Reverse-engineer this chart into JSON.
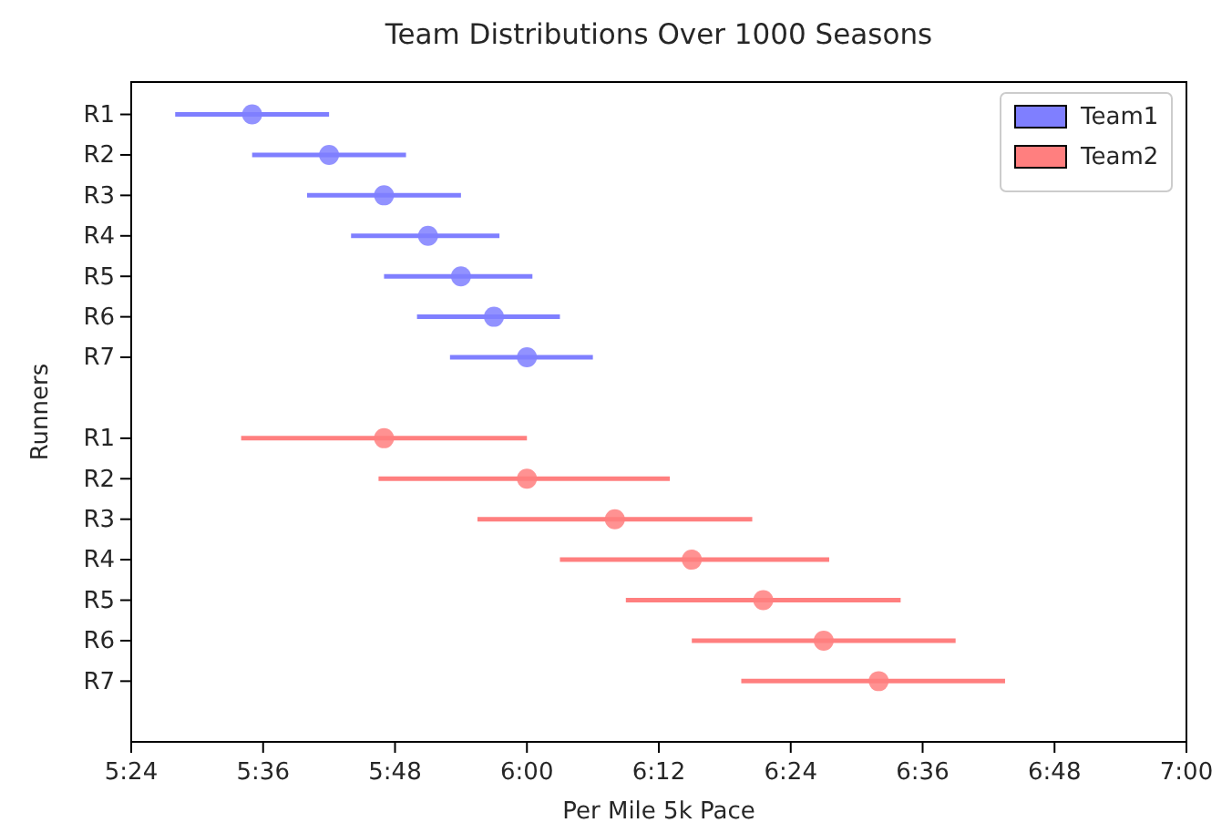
{
  "chart_data": {
    "type": "scatter",
    "orientation": "horizontal",
    "title": "Team Distributions Over 1000 Seasons",
    "xlabel": "Per Mile 5k Pace",
    "ylabel": "Runners",
    "categories": [
      "R1",
      "R2",
      "R3",
      "R4",
      "R5",
      "R6",
      "R7",
      null,
      "R1",
      "R2",
      "R3",
      "R4",
      "R5",
      "R6",
      "R7"
    ],
    "xlim": [
      324,
      420
    ],
    "xticks": [
      {
        "value": 324,
        "label": "5:24"
      },
      {
        "value": 336,
        "label": "5:36"
      },
      {
        "value": 348,
        "label": "5:48"
      },
      {
        "value": 360,
        "label": "6:00"
      },
      {
        "value": 372,
        "label": "6:12"
      },
      {
        "value": 384,
        "label": "6:24"
      },
      {
        "value": 396,
        "label": "6:36"
      },
      {
        "value": 408,
        "label": "6:48"
      },
      {
        "value": 420,
        "label": "7:00"
      }
    ],
    "series": [
      {
        "name": "Team1",
        "color": "#7f7fff",
        "values": [
          335,
          342,
          347,
          351,
          354,
          357,
          360,
          null,
          null,
          null,
          null,
          null,
          null,
          null,
          null
        ],
        "errors": [
          [
            328,
            342
          ],
          [
            335,
            349
          ],
          [
            340,
            354
          ],
          [
            344,
            357.5
          ],
          [
            347,
            360.5
          ],
          [
            350,
            363
          ],
          [
            353,
            366
          ],
          null,
          null,
          null,
          null,
          null,
          null,
          null,
          null
        ]
      },
      {
        "name": "Team2",
        "color": "#ff7f7f",
        "values": [
          null,
          null,
          null,
          null,
          null,
          null,
          null,
          null,
          347,
          360,
          368,
          375,
          381.5,
          387,
          392
        ],
        "errors": [
          null,
          null,
          null,
          null,
          null,
          null,
          null,
          null,
          [
            334,
            360
          ],
          [
            346.5,
            373
          ],
          [
            355.5,
            380.5
          ],
          [
            363,
            387.5
          ],
          [
            369,
            394
          ],
          [
            375,
            399
          ],
          [
            379.5,
            403.5
          ]
        ]
      }
    ],
    "legend": "top right",
    "marker": "circle",
    "grid": false
  }
}
